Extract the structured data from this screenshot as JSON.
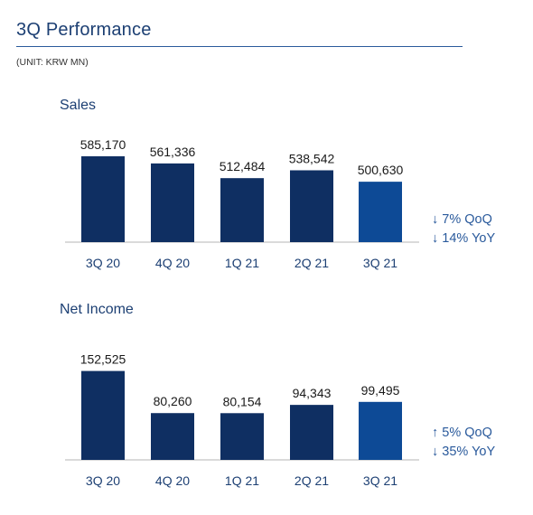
{
  "header": {
    "title": "3Q Performance",
    "unit": "(UNIT: KRW MN)"
  },
  "colors": {
    "bar_primary": "#0f2f62",
    "bar_highlight": "#0d4a96",
    "accent_text": "#2a5a9c",
    "baseline": "#b5b5b5"
  },
  "chart_data": [
    {
      "type": "bar",
      "title": "Sales",
      "categories": [
        "3Q 20",
        "4Q 20",
        "1Q 21",
        "2Q 21",
        "3Q 21"
      ],
      "values": [
        585170,
        561336,
        512484,
        538542,
        500630
      ],
      "value_labels": [
        "585,170",
        "561,336",
        "512,484",
        "538,542",
        "500,630"
      ],
      "highlight_index": 4,
      "ylim": [
        300000,
        600000
      ],
      "grid": false,
      "changes": [
        "↓ 7% QoQ",
        "↓ 14% YoY"
      ]
    },
    {
      "type": "bar",
      "title": "Net Income",
      "categories": [
        "3Q 20",
        "4Q 20",
        "1Q 21",
        "2Q 21",
        "3Q 21"
      ],
      "values": [
        152525,
        80260,
        80154,
        94343,
        99495
      ],
      "value_labels": [
        "152,525",
        "80,260",
        "80,154",
        "94,343",
        "99,495"
      ],
      "highlight_index": 4,
      "ylim": [
        0,
        155000
      ],
      "grid": false,
      "changes": [
        "↑ 5% QoQ",
        "↓ 35% YoY"
      ]
    }
  ]
}
